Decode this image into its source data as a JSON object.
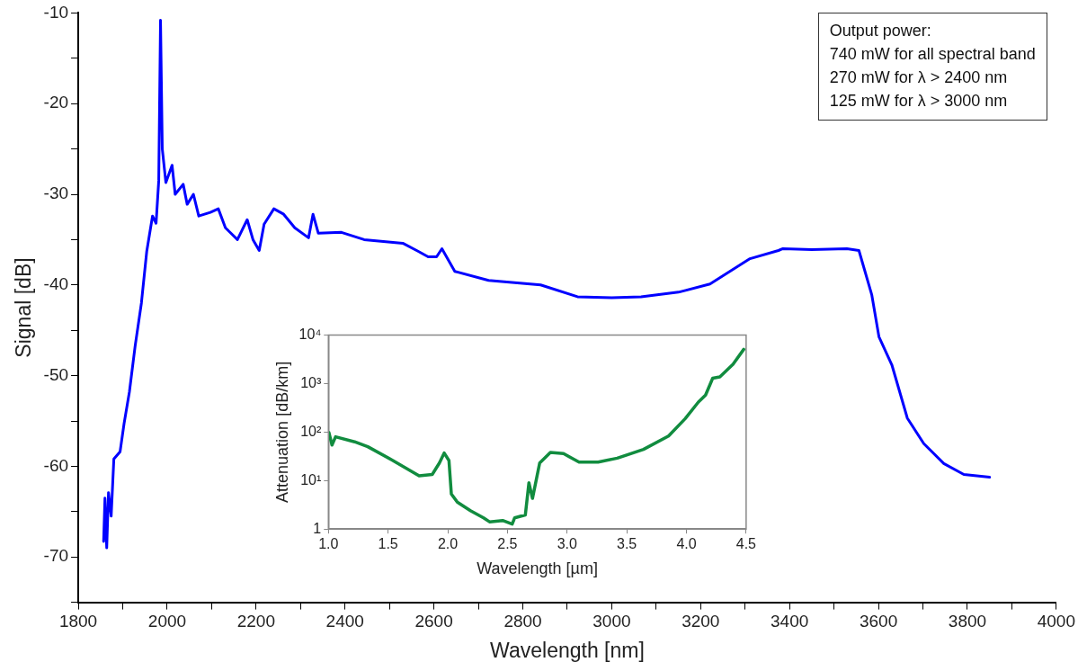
{
  "chart_data": [
    {
      "type": "line",
      "xlabel": "Wavelength [nm]",
      "ylabel": "Signal [dB]",
      "color": "#0000ff",
      "grid": false,
      "annotations": [
        "Output power:",
        "740 mW for all spectral band",
        "270 mW for λ > 2400 nm",
        "125 mW for λ > 3000 nm"
      ],
      "xlim": [
        1800,
        4000
      ],
      "xticks": [
        1800,
        {
          "value": 1900,
          "label": null
        },
        2000,
        {
          "value": 2100,
          "label": null
        },
        2200,
        {
          "value": 2300,
          "label": null
        },
        2400,
        {
          "value": 2500,
          "label": null
        },
        2600,
        {
          "value": 2700,
          "label": null
        },
        2800,
        {
          "value": 2900,
          "label": null
        },
        3000,
        {
          "value": 3100,
          "label": null
        },
        3200,
        {
          "value": 3300,
          "label": null
        },
        3400,
        {
          "value": 3500,
          "label": null
        },
        3600,
        {
          "value": 3700,
          "label": null
        },
        3800,
        {
          "value": 3900,
          "label": null
        },
        4000
      ],
      "ylim": [
        -75,
        -10
      ],
      "yticks": [
        {
          "value": -75,
          "label": null
        },
        -70,
        {
          "value": -65,
          "label": null
        },
        -60,
        {
          "value": -55,
          "label": null
        },
        -50,
        {
          "value": -45,
          "label": null
        },
        -40,
        {
          "value": -35,
          "label": null
        },
        -30,
        {
          "value": -25,
          "label": null
        },
        -20,
        {
          "value": -15,
          "label": null
        },
        -10
      ],
      "x": [
        1857,
        1860,
        1864,
        1868,
        1874,
        1880,
        1894,
        1903,
        1915,
        1928,
        1942,
        1954,
        1967,
        1975,
        1981,
        1985,
        1989,
        1997,
        2011,
        2018,
        2036,
        2045,
        2059,
        2071,
        2097,
        2115,
        2131,
        2158,
        2180,
        2193,
        2207,
        2218,
        2240,
        2262,
        2287,
        2318,
        2328,
        2340,
        2392,
        2443,
        2530,
        2565,
        2587,
        2606,
        2618,
        2647,
        2723,
        2840,
        2923,
        3000,
        3066,
        3150,
        3221,
        3311,
        3375,
        3385,
        3450,
        3529,
        3556,
        3585,
        3601,
        3630,
        3665,
        3702,
        3747,
        3792,
        3850
      ],
      "values": [
        -68.3,
        -63.5,
        -69,
        -62.9,
        -65.5,
        -59.2,
        -58.4,
        -55.3,
        -51.8,
        -46.7,
        -42,
        -36.3,
        -32.4,
        -33.2,
        -28.5,
        -10.8,
        -25,
        -28.7,
        -26.8,
        -30,
        -28.9,
        -31.1,
        -30,
        -32.4,
        -32,
        -31.6,
        -33.7,
        -35,
        -32.8,
        -35,
        -36.2,
        -33.3,
        -31.6,
        -32.2,
        -33.7,
        -34.8,
        -32.2,
        -34.3,
        -34.2,
        -35,
        -35.4,
        -36.3,
        -36.9,
        -36.9,
        -36,
        -38.5,
        -39.5,
        -40,
        -41.3,
        -41.4,
        -41.3,
        -40.8,
        -39.9,
        -37.1,
        -36.2,
        -36,
        -36.1,
        -36,
        -36.2,
        -41.1,
        -45.7,
        -48.8,
        -54.7,
        -57.5,
        -59.7,
        -60.9,
        -61.2
      ]
    },
    {
      "type": "line",
      "xlabel": "Wavelength [µm]",
      "ylabel": "Attenuation [dB/km]",
      "color": "#118c3f",
      "grid": false,
      "log": "y",
      "xlim": [
        1,
        4.5
      ],
      "xticks": [
        {
          "value": 1,
          "label": "1.0"
        },
        {
          "value": 1.5,
          "label": "1.5"
        },
        {
          "value": 2,
          "label": "2.0"
        },
        {
          "value": 2.5,
          "label": "2.5"
        },
        {
          "value": 3,
          "label": "3.0"
        },
        {
          "value": 3.5,
          "label": "3.5"
        },
        {
          "value": 4,
          "label": "4.0"
        },
        {
          "value": 4.5,
          "label": "4.5"
        }
      ],
      "ylim": [
        1,
        10000
      ],
      "yticks": [
        1,
        {
          "value": 10,
          "label": "10¹"
        },
        {
          "value": 100,
          "label": "10²"
        },
        {
          "value": 1000,
          "label": "10³"
        },
        {
          "value": 10000,
          "label": "10⁴"
        }
      ],
      "x": [
        1.005,
        1.03,
        1.06,
        1.22,
        1.33,
        1.54,
        1.76,
        1.87,
        1.93,
        1.97,
        2.01,
        2.03,
        2.08,
        2.19,
        2.3,
        2.35,
        2.46,
        2.54,
        2.56,
        2.65,
        2.68,
        2.71,
        2.77,
        2.86,
        2.97,
        3.1,
        3.26,
        3.42,
        3.64,
        3.85,
        3.99,
        4.1,
        4.16,
        4.22,
        4.28,
        4.39,
        4.48
      ],
      "values": [
        97,
        54,
        80,
        63,
        50,
        26,
        12.6,
        13.4,
        23,
        37,
        26,
        5.3,
        3.6,
        2.4,
        1.7,
        1.41,
        1.5,
        1.27,
        1.7,
        1.96,
        9,
        4.3,
        23,
        38,
        36,
        24,
        24,
        29,
        44,
        83,
        190,
        417,
        580,
        1290,
        1380,
        2500,
        5100
      ]
    }
  ]
}
